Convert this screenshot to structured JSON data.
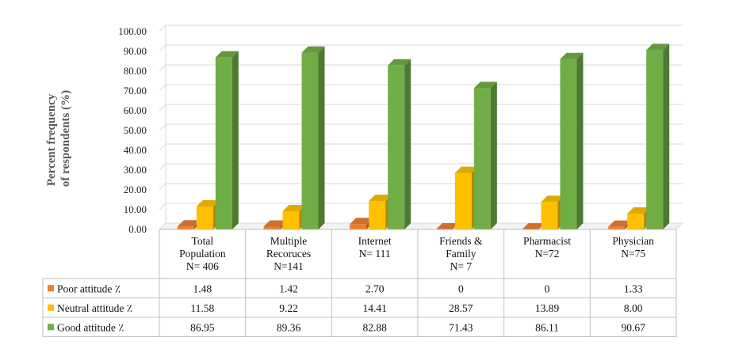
{
  "chart_data": {
    "type": "bar",
    "ylabel": [
      "Percent frequency",
      "of respondents (%)"
    ],
    "ylim": [
      0,
      100
    ],
    "yticks": [
      "0.00",
      "10.00",
      "20.00",
      "30.00",
      "40.00",
      "50.00",
      "60.00",
      "70.00",
      "80.00",
      "90.00",
      "100.00"
    ],
    "categories": [
      [
        "Total",
        "Population",
        "N= 406"
      ],
      [
        "Multiple",
        "Recoruces",
        "N=141"
      ],
      [
        "Internet",
        "N= 111"
      ],
      [
        "Friends &",
        "Family",
        "N= 7"
      ],
      [
        "Pharmacist",
        "N=72"
      ],
      [
        "Physician",
        "N=75"
      ]
    ],
    "series": [
      {
        "name": "Poor attitude",
        "unit": "٪",
        "color": "#ED7D31",
        "values": [
          1.48,
          1.42,
          2.7,
          0,
          0,
          1.33
        ],
        "labels": [
          "1.48",
          "1.42",
          "2.70",
          "0",
          "0",
          "1.33"
        ]
      },
      {
        "name": "Neutral attitude",
        "unit": "٪",
        "color": "#FFC000",
        "values": [
          11.58,
          9.22,
          14.41,
          28.57,
          13.89,
          8.0
        ],
        "labels": [
          "11.58",
          "9.22",
          "14.41",
          "28.57",
          "13.89",
          "8.00"
        ]
      },
      {
        "name": "Good attitude",
        "unit": "٪",
        "color": "#70AD47",
        "values": [
          86.95,
          89.36,
          82.88,
          71.43,
          86.11,
          90.67
        ],
        "labels": [
          "86.95",
          "89.36",
          "82.88",
          "71.43",
          "86.11",
          "90.67"
        ]
      }
    ],
    "grid": true,
    "legend": "data-table"
  }
}
